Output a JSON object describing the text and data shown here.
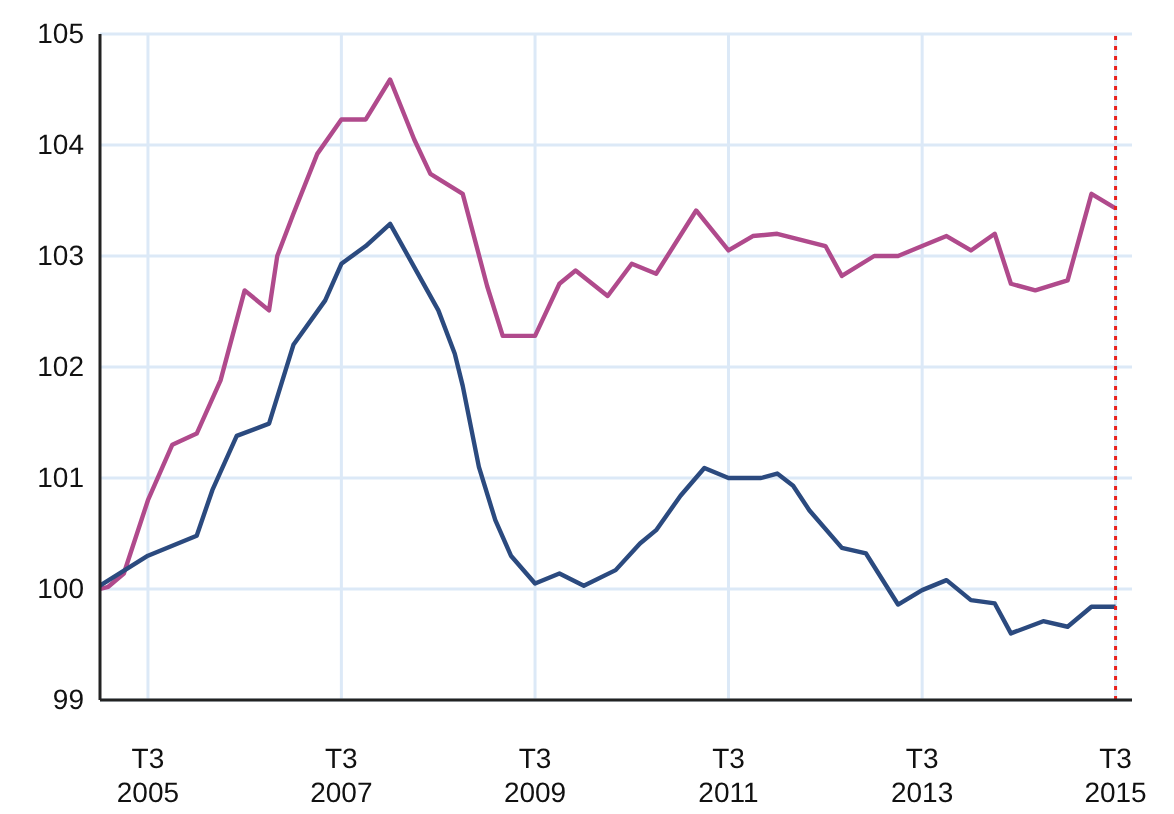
{
  "chart_data": {
    "type": "line",
    "xlim": [
      "2005-01",
      "2015-09"
    ],
    "ylim": [
      99,
      105
    ],
    "xticks": [
      {
        "value": "2005-07",
        "label": "T3 2005"
      },
      {
        "value": "2007-07",
        "label": "T3 2007"
      },
      {
        "value": "2009-07",
        "label": "T3 2009"
      },
      {
        "value": "2011-07",
        "label": "T3 2011"
      },
      {
        "value": "2013-07",
        "label": "T3 2013"
      },
      {
        "value": "2015-07",
        "label": "T3 2015"
      }
    ],
    "yticks": [
      99,
      100,
      101,
      102,
      103,
      104,
      105
    ],
    "grid": true,
    "marker": "none",
    "line_style": "solid",
    "ref_lines": [
      {
        "axis": "x",
        "value": "2015-07",
        "color": "#e8201c",
        "line_style": "dotted"
      }
    ],
    "series": [
      {
        "color": "#b04a8c",
        "x": [
          "2005-01",
          "2005-02",
          "2005-04",
          "2005-07",
          "2005-10",
          "2006-01",
          "2006-04",
          "2006-07",
          "2006-10",
          "2006-11",
          "2007-01",
          "2007-04",
          "2007-07",
          "2007-10",
          "2008-01",
          "2008-04",
          "2008-06",
          "2008-10",
          "2009-01",
          "2009-03",
          "2009-07",
          "2009-10",
          "2009-12",
          "2010-04",
          "2010-07",
          "2010-10",
          "2011-03",
          "2011-07",
          "2011-10",
          "2012-01",
          "2012-07",
          "2012-09",
          "2013-01",
          "2013-04",
          "2013-07",
          "2013-10",
          "2014-01",
          "2014-04",
          "2014-06",
          "2014-09",
          "2015-01",
          "2015-04",
          "2015-07"
        ],
        "values": [
          100.0,
          100.02,
          100.14,
          100.8,
          101.3,
          101.4,
          101.88,
          102.69,
          102.51,
          103.0,
          103.38,
          103.92,
          104.23,
          104.23,
          104.59,
          104.05,
          103.74,
          103.56,
          102.73,
          102.28,
          102.28,
          102.75,
          102.87,
          102.64,
          102.93,
          102.84,
          103.41,
          103.05,
          103.18,
          103.2,
          103.09,
          102.82,
          103.0,
          103.0,
          103.09,
          103.18,
          103.05,
          103.2,
          102.75,
          102.69,
          102.78,
          103.56,
          103.43
        ]
      },
      {
        "color": "#2b4a7f",
        "x": [
          "2005-01",
          "2005-07",
          "2006-01",
          "2006-03",
          "2006-06",
          "2006-10",
          "2007-01",
          "2007-05",
          "2007-07",
          "2007-10",
          "2008-01",
          "2008-04",
          "2008-07",
          "2008-09",
          "2008-10",
          "2008-12",
          "2009-02",
          "2009-04",
          "2009-07",
          "2009-10",
          "2010-01",
          "2010-05",
          "2010-08",
          "2010-10",
          "2011-01",
          "2011-04",
          "2011-07",
          "2011-11",
          "2012-01",
          "2012-03",
          "2012-05",
          "2012-09",
          "2012-12",
          "2013-04",
          "2013-07",
          "2013-10",
          "2014-01",
          "2014-04",
          "2014-06",
          "2014-10",
          "2015-01",
          "2015-04",
          "2015-07"
        ],
        "values": [
          100.03,
          100.3,
          100.48,
          100.89,
          101.38,
          101.49,
          102.2,
          102.6,
          102.93,
          103.09,
          103.29,
          102.9,
          102.51,
          102.12,
          101.83,
          101.1,
          100.62,
          100.3,
          100.05,
          100.14,
          100.03,
          100.17,
          100.41,
          100.53,
          100.84,
          101.09,
          101.0,
          101.0,
          101.04,
          100.93,
          100.71,
          100.37,
          100.32,
          99.86,
          99.99,
          100.08,
          99.9,
          99.87,
          99.6,
          99.71,
          99.66,
          99.84,
          99.84
        ]
      }
    ]
  }
}
